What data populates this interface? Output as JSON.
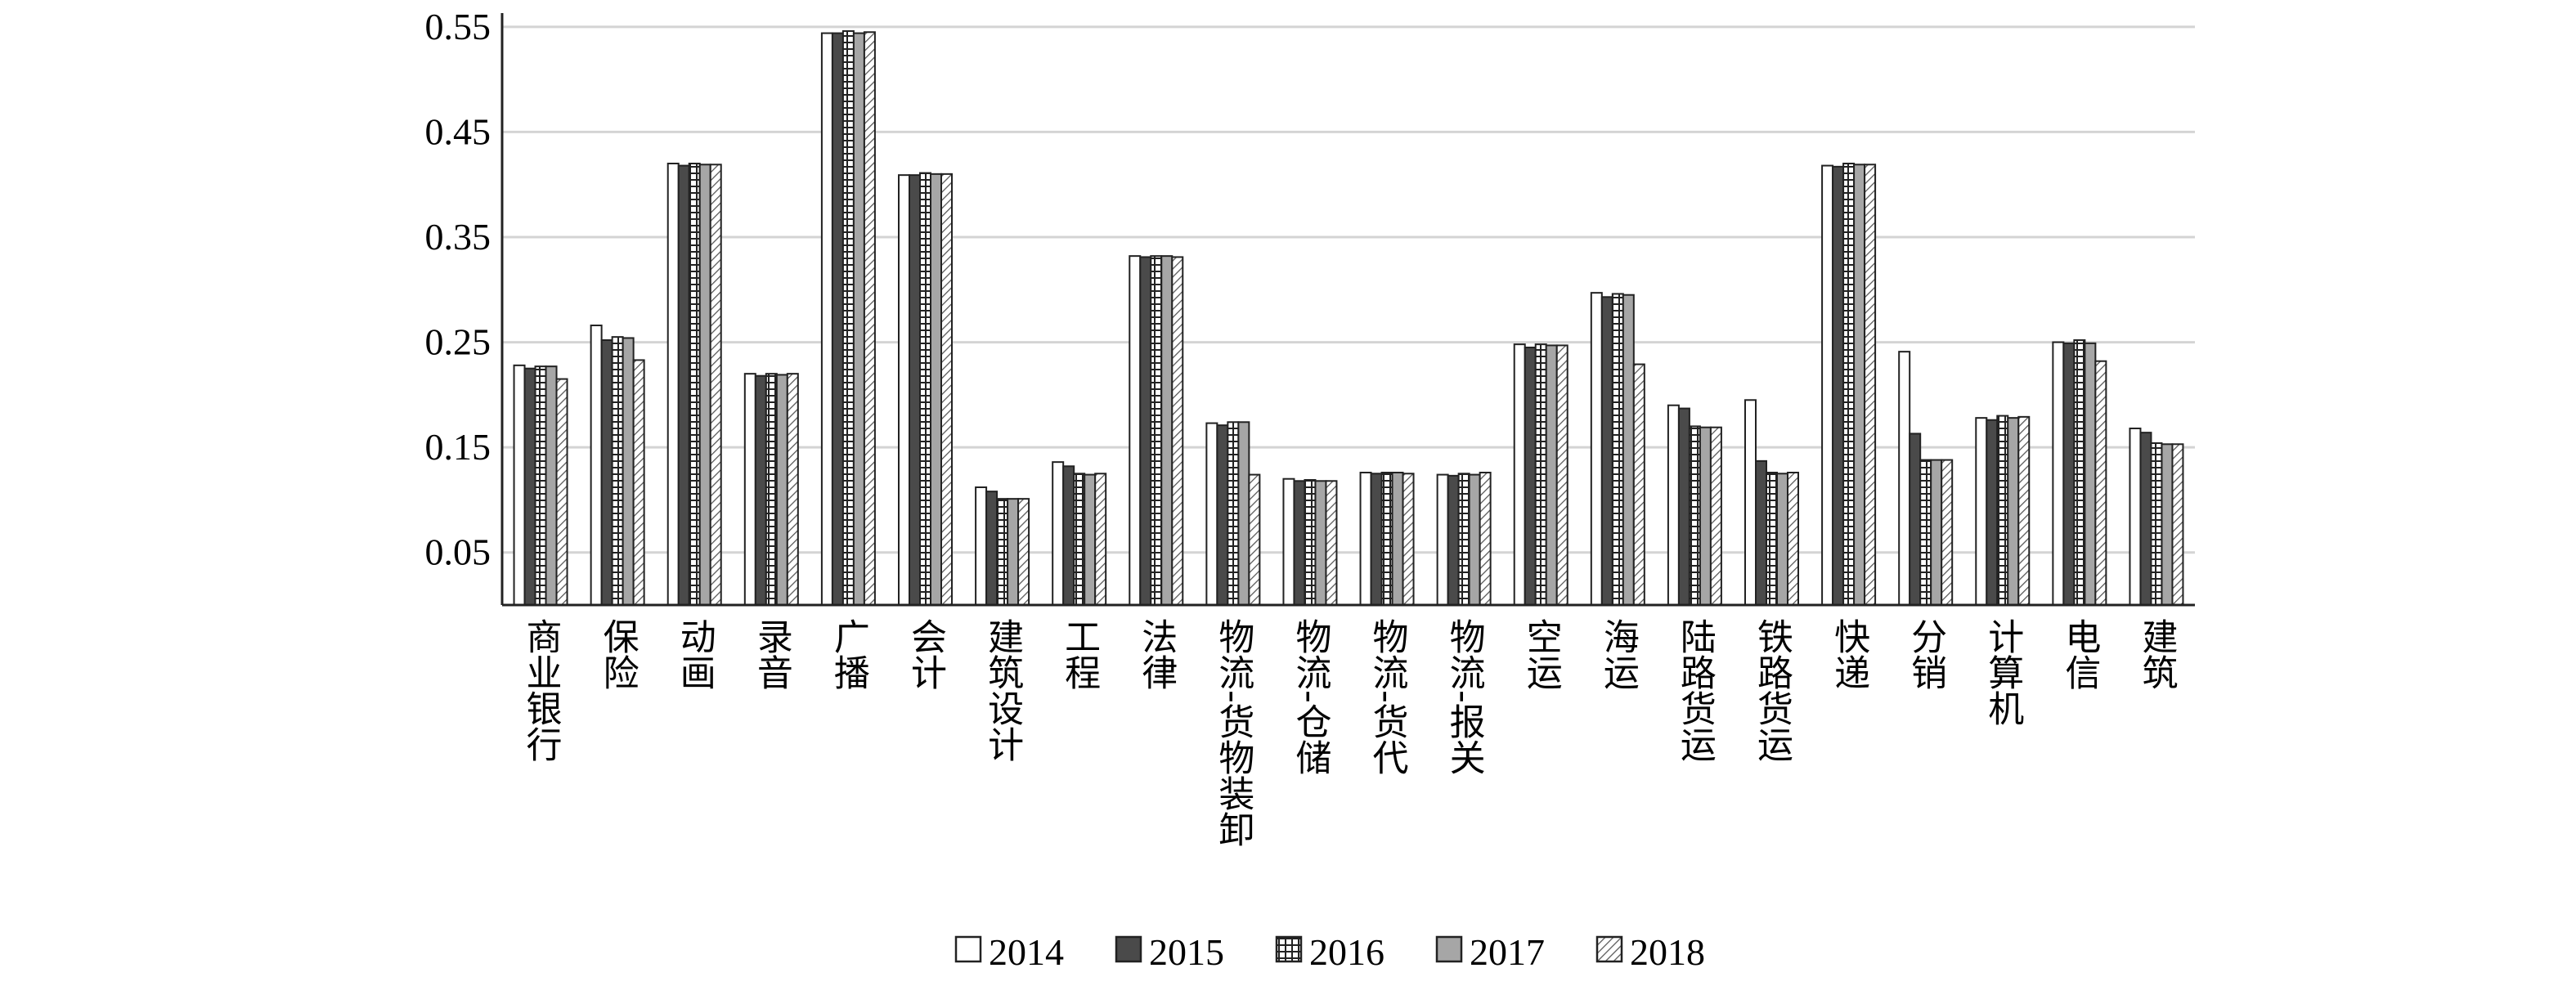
{
  "chart_data": {
    "type": "bar",
    "title": "",
    "xlabel": "",
    "ylabel": "",
    "ylim": [
      0.0,
      0.56
    ],
    "yticks": [
      0.05,
      0.15,
      0.25,
      0.35,
      0.45,
      0.55
    ],
    "ytick_labels": [
      "0.05",
      "0.15",
      "0.25",
      "0.35",
      "0.45",
      "0.55"
    ],
    "grid": true,
    "legend_position": "bottom",
    "categories": [
      "商业银行",
      "保险",
      "动画",
      "录音",
      "广播",
      "会计",
      "建筑设计",
      "工程",
      "法律",
      "物流-货物装卸",
      "物流-仓储",
      "物流-货代",
      "物流-报关",
      "空运",
      "海运",
      "陆路货运",
      "铁路货运",
      "快递",
      "分销",
      "计算机",
      "电信",
      "建筑"
    ],
    "series": [
      {
        "name": "2014",
        "pattern": "white",
        "values": [
          0.228,
          0.266,
          0.42,
          0.22,
          0.544,
          0.409,
          0.112,
          0.136,
          0.332,
          0.173,
          0.12,
          0.126,
          0.124,
          0.248,
          0.297,
          0.19,
          0.195,
          0.418,
          0.241,
          0.178,
          0.25,
          0.168
        ]
      },
      {
        "name": "2015",
        "pattern": "dark",
        "values": [
          0.225,
          0.252,
          0.418,
          0.218,
          0.544,
          0.409,
          0.108,
          0.132,
          0.331,
          0.171,
          0.118,
          0.125,
          0.123,
          0.245,
          0.293,
          0.187,
          0.137,
          0.417,
          0.163,
          0.176,
          0.249,
          0.164
        ]
      },
      {
        "name": "2016",
        "pattern": "cross",
        "values": [
          0.227,
          0.255,
          0.42,
          0.22,
          0.546,
          0.411,
          0.101,
          0.125,
          0.332,
          0.174,
          0.119,
          0.126,
          0.125,
          0.248,
          0.296,
          0.17,
          0.126,
          0.42,
          0.138,
          0.18,
          0.252,
          0.154
        ]
      },
      {
        "name": "2017",
        "pattern": "gray",
        "values": [
          0.227,
          0.254,
          0.419,
          0.219,
          0.544,
          0.41,
          0.101,
          0.124,
          0.332,
          0.174,
          0.118,
          0.126,
          0.124,
          0.247,
          0.295,
          0.169,
          0.125,
          0.419,
          0.138,
          0.178,
          0.249,
          0.153
        ]
      },
      {
        "name": "2018",
        "pattern": "hatch",
        "values": [
          0.215,
          0.233,
          0.419,
          0.22,
          0.545,
          0.41,
          0.101,
          0.125,
          0.331,
          0.124,
          0.118,
          0.125,
          0.126,
          0.247,
          0.229,
          0.169,
          0.126,
          0.419,
          0.138,
          0.179,
          0.232,
          0.153
        ]
      }
    ],
    "colors": {
      "dark": "#4a4a4a",
      "gray": "#a6a6a6",
      "border": "#222222",
      "grid": "#d4d4d4",
      "axis": "#222222"
    }
  }
}
